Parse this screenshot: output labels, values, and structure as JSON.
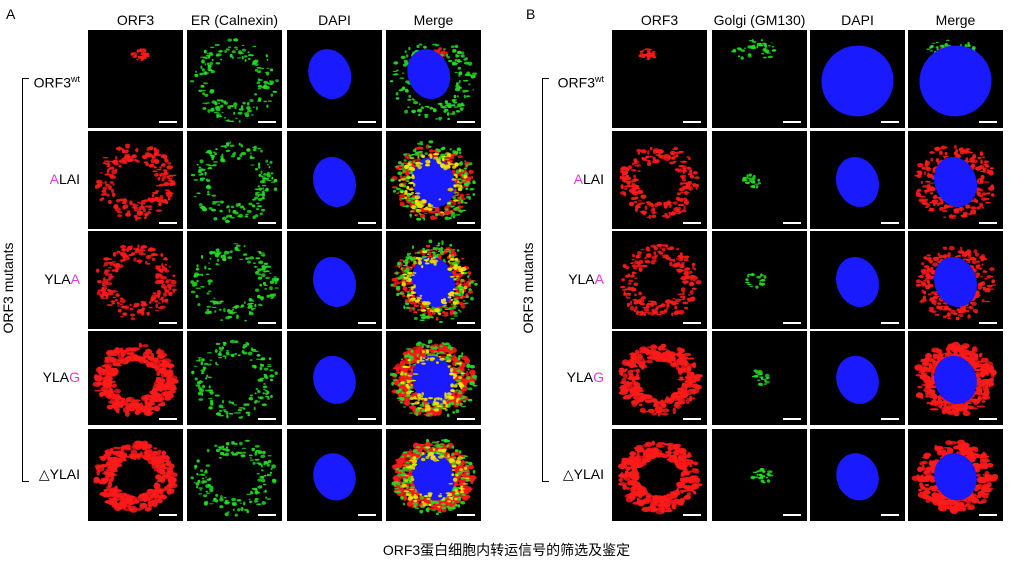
{
  "panels": [
    {
      "letter": "A",
      "columns": [
        "ORF3",
        "ER (Calnexin)",
        "DAPI",
        "Merge"
      ],
      "side_label": "ORF3 mutants",
      "rows": [
        {
          "pre": "ORF3",
          "hl": "",
          "post": "",
          "sup": "wt"
        },
        {
          "pre": "",
          "hl": "A",
          "post": "LAI",
          "sup": ""
        },
        {
          "pre": "YLA",
          "hl": "A",
          "post": "",
          "sup": ""
        },
        {
          "pre": "YLA",
          "hl": "G",
          "post": "",
          "sup": ""
        },
        {
          "pre": "△YLAI",
          "hl": "",
          "post": "",
          "sup": ""
        }
      ]
    },
    {
      "letter": "B",
      "columns": [
        "ORF3",
        "Golgi (GM130)",
        "DAPI",
        "Merge"
      ],
      "side_label": "ORF3 mutants",
      "rows": [
        {
          "pre": "ORF3",
          "hl": "",
          "post": "",
          "sup": "wt"
        },
        {
          "pre": "",
          "hl": "A",
          "post": "LAI",
          "sup": ""
        },
        {
          "pre": "YLA",
          "hl": "A",
          "post": "",
          "sup": ""
        },
        {
          "pre": "YLA",
          "hl": "G",
          "post": "",
          "sup": ""
        },
        {
          "pre": "△YLAI",
          "hl": "",
          "post": "",
          "sup": ""
        }
      ]
    }
  ],
  "colors": {
    "orf3": "#ff1a1a",
    "marker": "#22dd22",
    "dapi": "#1a1aff",
    "overlap": "#f4e400",
    "highlight": "#e13fd6"
  },
  "caption": "ORF3蛋白细胞内转运信号的筛选及鉴定"
}
